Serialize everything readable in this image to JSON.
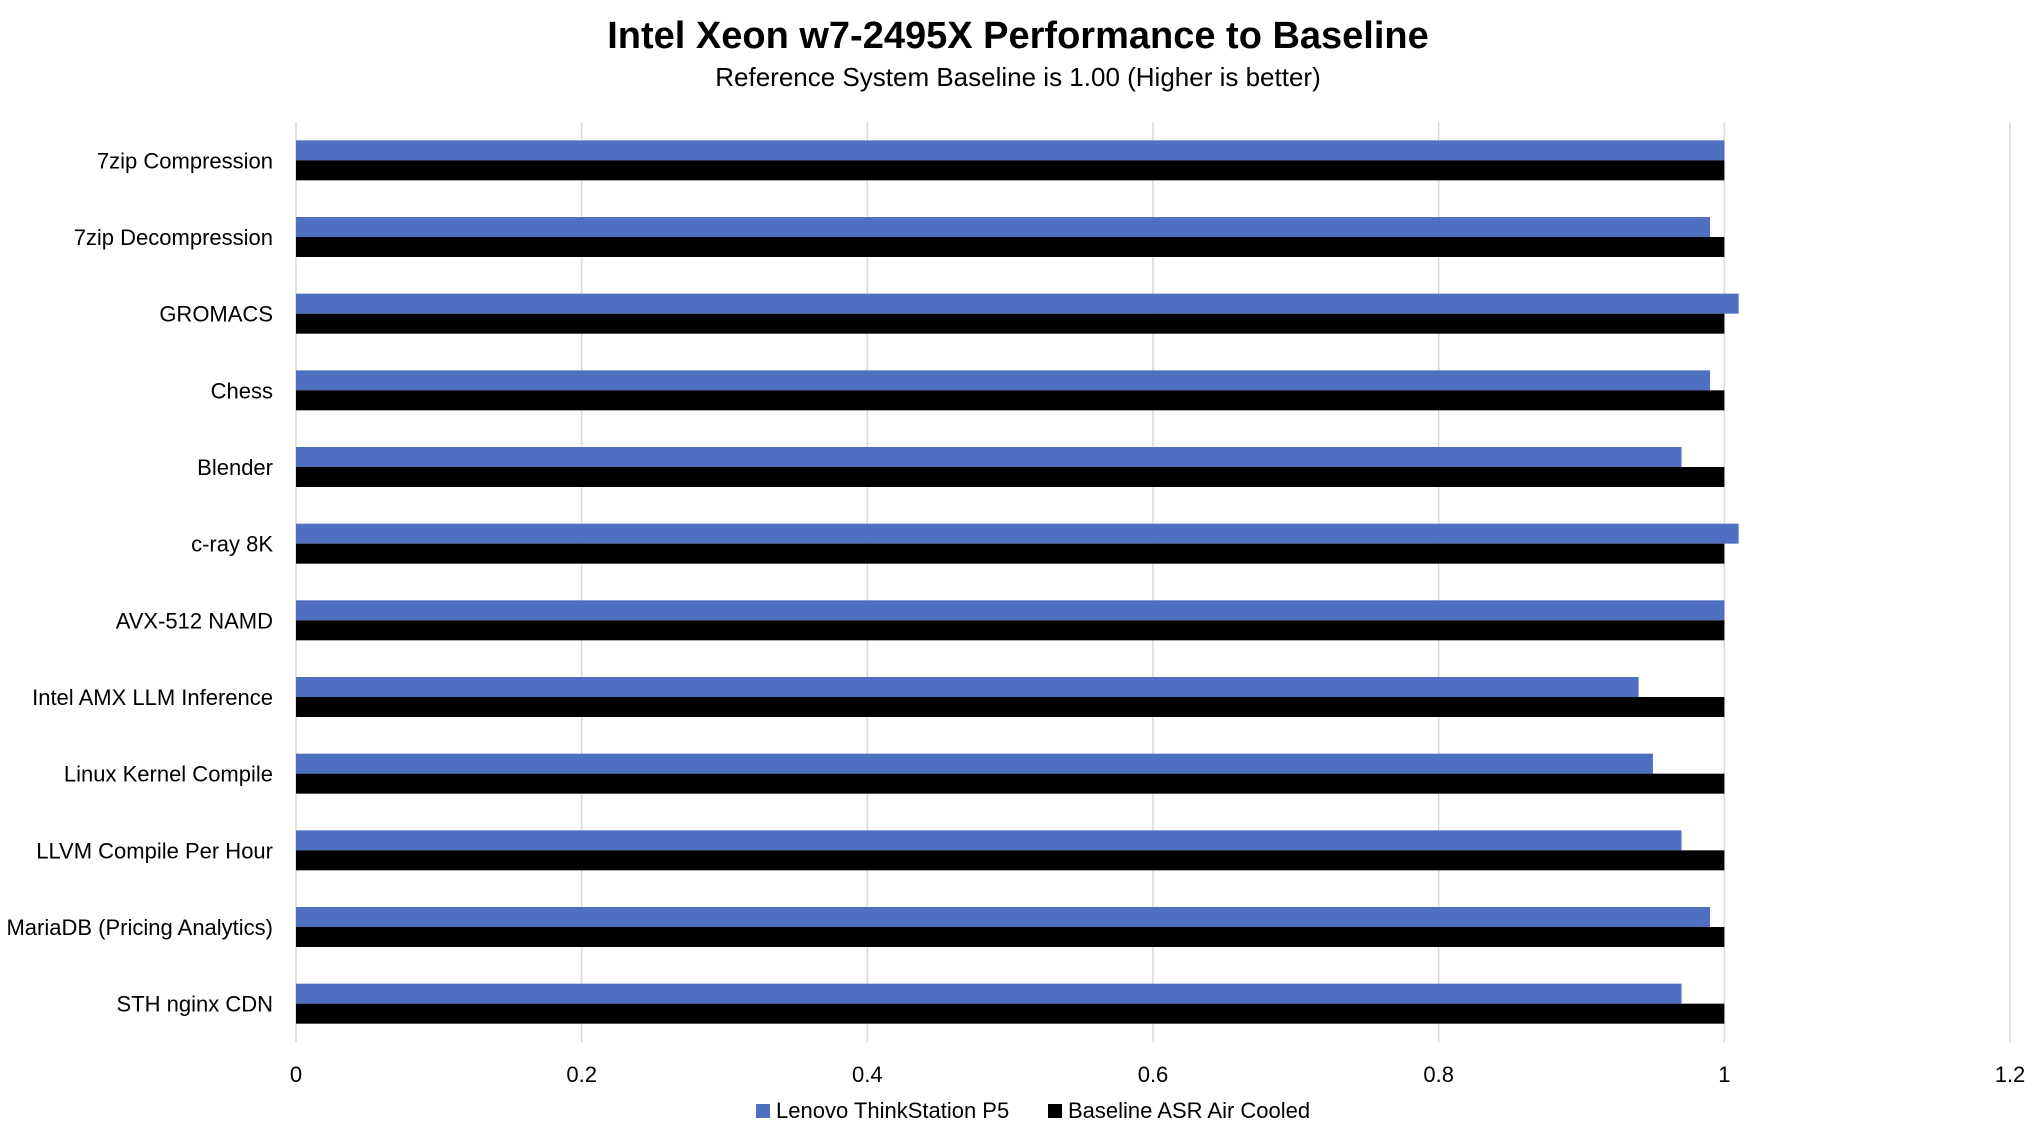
{
  "chart_data": {
    "type": "bar",
    "orientation": "horizontal",
    "title": "Intel Xeon w7-2495X Performance to Baseline",
    "subtitle": "Reference System Baseline is 1.00 (Higher is better)",
    "xlabel": "",
    "ylabel": "",
    "xlim": [
      0,
      1.2
    ],
    "x_ticks": [
      0,
      0.2,
      0.4,
      0.6,
      0.8,
      1,
      1.2
    ],
    "x_tick_labels": [
      "0",
      "0.2",
      "0.4",
      "0.6",
      "0.8",
      "1",
      "1.2"
    ],
    "grid": "vertical",
    "legend_position": "bottom",
    "categories": [
      "7zip Compression",
      "7zip Decompression",
      "GROMACS",
      "Chess",
      "Blender",
      "c-ray 8K",
      "AVX-512 NAMD",
      "Intel AMX LLM Inference",
      "Linux Kernel Compile",
      "LLVM Compile Per Hour",
      "MariaDB (Pricing Analytics)",
      "STH nginx CDN"
    ],
    "series": [
      {
        "name": "Lenovo ThinkStation P5",
        "color": "#4f6fc0",
        "values": [
          1.0,
          0.99,
          1.01,
          0.99,
          0.97,
          1.01,
          1.0,
          0.94,
          0.95,
          0.97,
          0.99,
          0.97
        ]
      },
      {
        "name": "Baseline ASR Air Cooled",
        "color": "#000000",
        "values": [
          1.0,
          1.0,
          1.0,
          1.0,
          1.0,
          1.0,
          1.0,
          1.0,
          1.0,
          1.0,
          1.0,
          1.0
        ]
      }
    ]
  }
}
